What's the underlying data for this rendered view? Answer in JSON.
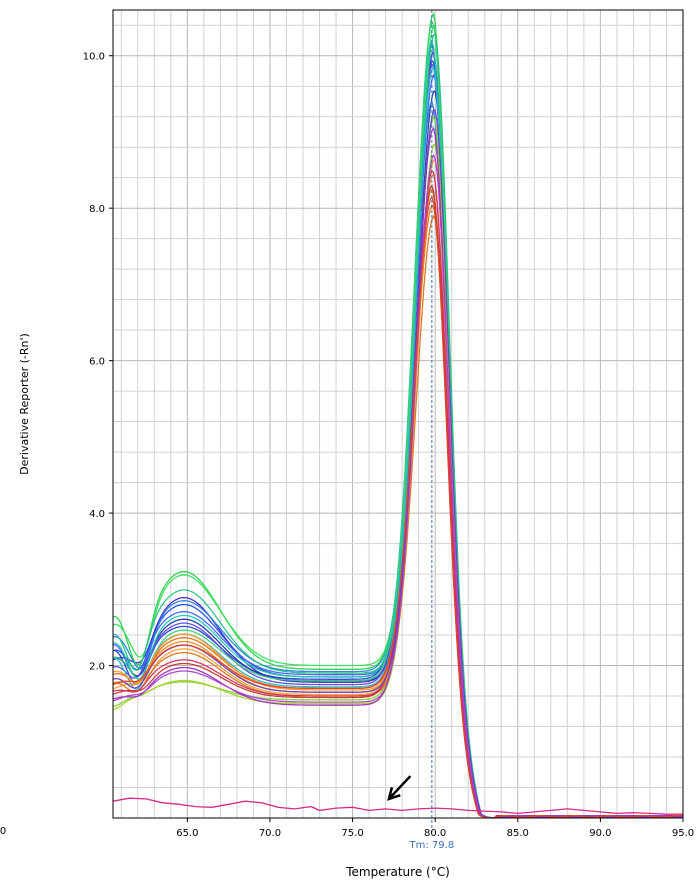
{
  "chart_data": {
    "type": "line",
    "title": "",
    "xlabel": "Temperature (°C)",
    "ylabel": "Derivative Reporter (-Rn')",
    "xlim": [
      60.5,
      95.0
    ],
    "ylim": [
      0.0,
      10.6
    ],
    "x_ticks": [
      65,
      70,
      75,
      80,
      85,
      90,
      95
    ],
    "x_tick_labels": [
      "65.0",
      "70.0",
      "75.0",
      "80.0",
      "85.0",
      "90.0",
      "95.0"
    ],
    "y_ticks": [
      2,
      4,
      6,
      8,
      10
    ],
    "y_tick_labels": [
      "2.0",
      "4.0",
      "6.0",
      "8.0",
      "10.0"
    ],
    "partial_left_tick_label": "0",
    "grid": true,
    "tm_marker": {
      "x": 79.8,
      "label": "Tm: 79.8",
      "color": "#3a6fc4"
    },
    "pointer_arrow": {
      "from_x": 78.5,
      "from_y": 0.55,
      "to_x": 77.2,
      "to_y": 0.25
    },
    "sample_curve_params": [
      {
        "color": "#2b3fd6",
        "a": 2.55,
        "b": 1.82,
        "peak": 10.15,
        "start": 2.3
      },
      {
        "color": "#1f4ce8",
        "a": 2.85,
        "b": 1.85,
        "peak": 9.95,
        "start": 2.2
      },
      {
        "color": "#3b2fc9",
        "a": 2.95,
        "b": 1.78,
        "peak": 10.05,
        "start": 2.0
      },
      {
        "color": "#4060ff",
        "a": 2.75,
        "b": 1.88,
        "peak": 9.75,
        "start": 2.35
      },
      {
        "color": "#1a3aa8",
        "a": 2.65,
        "b": 1.8,
        "peak": 9.55,
        "start": 2.1
      },
      {
        "color": "#2d7fe0",
        "a": 2.9,
        "b": 1.92,
        "peak": 9.4,
        "start": 2.45
      },
      {
        "color": "#5a4be0",
        "a": 2.6,
        "b": 1.75,
        "peak": 9.9,
        "start": 1.95
      },
      {
        "color": "#2ad14c",
        "a": 3.3,
        "b": 1.95,
        "peak": 10.55,
        "start": 2.8
      },
      {
        "color": "#38e05a",
        "a": 3.25,
        "b": 2.0,
        "peak": 10.4,
        "start": 2.6
      },
      {
        "color": "#22c28a",
        "a": 3.05,
        "b": 1.9,
        "peak": 10.3,
        "start": 2.5
      },
      {
        "color": "#1fc7b0",
        "a": 2.7,
        "b": 1.85,
        "peak": 10.2,
        "start": 2.4
      },
      {
        "color": "#3ad07a",
        "a": 2.5,
        "b": 1.8,
        "peak": 10.45,
        "start": 2.15
      },
      {
        "color": "#22b8c8",
        "a": 2.45,
        "b": 1.72,
        "peak": 9.85,
        "start": 2.2
      },
      {
        "color": "#7fd12a",
        "a": 1.8,
        "b": 1.55,
        "peak": 9.2,
        "start": 1.35
      },
      {
        "color": "#a6d42a",
        "a": 1.82,
        "b": 1.5,
        "peak": 8.85,
        "start": 1.3
      },
      {
        "color": "#f08a1a",
        "a": 2.35,
        "b": 1.65,
        "peak": 8.25,
        "start": 1.7
      },
      {
        "color": "#e86a10",
        "a": 2.4,
        "b": 1.7,
        "peak": 8.05,
        "start": 1.85
      },
      {
        "color": "#f2a030",
        "a": 2.25,
        "b": 1.62,
        "peak": 8.45,
        "start": 1.6
      },
      {
        "color": "#d9741a",
        "a": 2.2,
        "b": 1.6,
        "peak": 7.9,
        "start": 1.75
      },
      {
        "color": "#ff9b2a",
        "a": 2.45,
        "b": 1.68,
        "peak": 8.65,
        "start": 1.9
      },
      {
        "color": "#c0392b",
        "a": 2.05,
        "b": 1.58,
        "peak": 8.3,
        "start": 1.55
      },
      {
        "color": "#d12d5c",
        "a": 2.1,
        "b": 1.6,
        "peak": 8.5,
        "start": 1.6
      },
      {
        "color": "#9b2fb8",
        "a": 2.0,
        "b": 1.48,
        "peak": 9.05,
        "start": 1.5
      },
      {
        "color": "#b03fd0",
        "a": 1.95,
        "b": 1.52,
        "peak": 8.7,
        "start": 1.45
      },
      {
        "color": "#6a3ec8",
        "a": 2.3,
        "b": 1.65,
        "peak": 9.3,
        "start": 1.8
      },
      {
        "color": "#e0452a",
        "a": 2.3,
        "b": 1.7,
        "peak": 8.15,
        "start": 1.65
      }
    ],
    "ntc_curve": {
      "color": "#d8288a",
      "points": [
        [
          60.5,
          0.22
        ],
        [
          61.5,
          0.26
        ],
        [
          62.5,
          0.25
        ],
        [
          63.5,
          0.2
        ],
        [
          64.5,
          0.18
        ],
        [
          65.5,
          0.15
        ],
        [
          66.5,
          0.14
        ],
        [
          67.5,
          0.18
        ],
        [
          68.5,
          0.22
        ],
        [
          69.5,
          0.2
        ],
        [
          70.5,
          0.14
        ],
        [
          71.5,
          0.12
        ],
        [
          72.5,
          0.15
        ],
        [
          73.0,
          0.1
        ],
        [
          74.0,
          0.13
        ],
        [
          75.0,
          0.14
        ],
        [
          76.0,
          0.1
        ],
        [
          77.0,
          0.12
        ],
        [
          78.0,
          0.1
        ],
        [
          79.0,
          0.12
        ],
        [
          80.0,
          0.13
        ],
        [
          81.0,
          0.12
        ],
        [
          82.0,
          0.1
        ],
        [
          83.0,
          0.09
        ],
        [
          84.0,
          0.08
        ],
        [
          85.0,
          0.06
        ],
        [
          86.0,
          0.08
        ],
        [
          87.0,
          0.1
        ],
        [
          88.0,
          0.12
        ],
        [
          89.0,
          0.1
        ],
        [
          90.0,
          0.08
        ],
        [
          91.0,
          0.06
        ],
        [
          92.0,
          0.07
        ],
        [
          93.0,
          0.06
        ],
        [
          94.0,
          0.05
        ],
        [
          95.0,
          0.05
        ]
      ]
    }
  }
}
